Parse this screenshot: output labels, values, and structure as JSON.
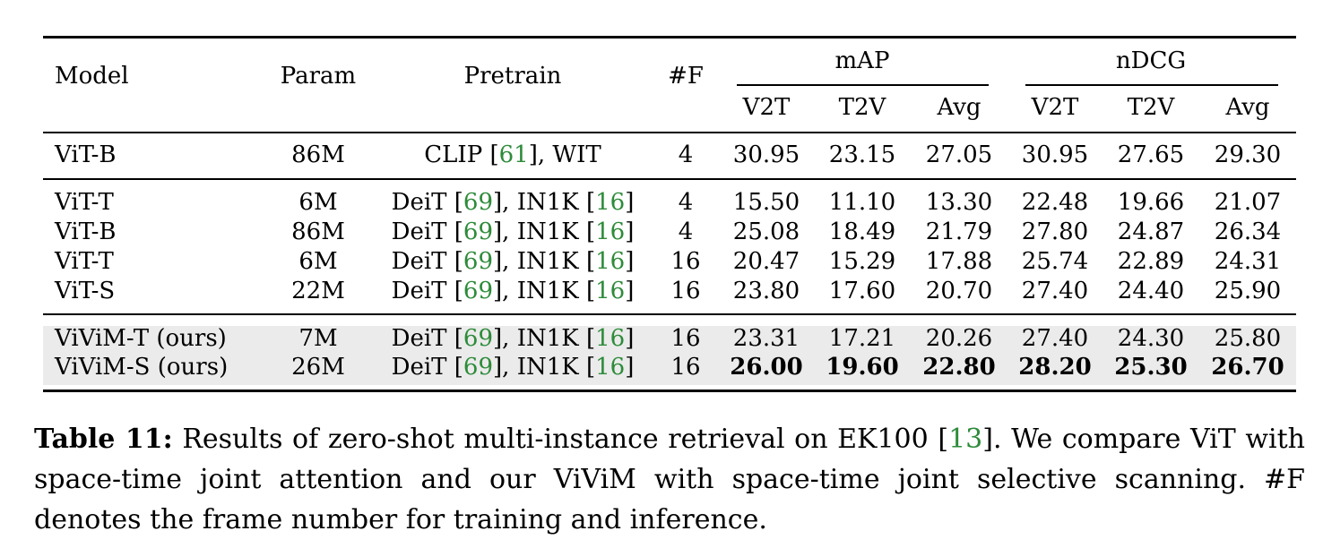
{
  "table": {
    "headers": {
      "model": "Model",
      "param": "Param",
      "pretrain": "Pretrain",
      "frames": "#F",
      "map_group": "mAP",
      "ndcg_group": "nDCG",
      "sub": [
        "V2T",
        "T2V",
        "Avg",
        "V2T",
        "T2V",
        "Avg"
      ]
    },
    "rows": [
      {
        "model": "ViT-B",
        "param": "86M",
        "pt_name": "CLIP",
        "pt_ref": "61",
        "pt_data": "WIT",
        "frames": "4",
        "vals": [
          "30.95",
          "23.15",
          "27.05",
          "30.95",
          "27.65",
          "29.30"
        ],
        "highlight": false,
        "bold_vals": false
      },
      {
        "model": "ViT-T",
        "param": "6M",
        "pt_name": "DeiT",
        "pt_ref": "69",
        "pt_data": "IN1K",
        "pt_data_ref": "16",
        "frames": "4",
        "vals": [
          "15.50",
          "11.10",
          "13.30",
          "22.48",
          "19.66",
          "21.07"
        ],
        "highlight": false,
        "bold_vals": false
      },
      {
        "model": "ViT-B",
        "param": "86M",
        "pt_name": "DeiT",
        "pt_ref": "69",
        "pt_data": "IN1K",
        "pt_data_ref": "16",
        "frames": "4",
        "vals": [
          "25.08",
          "18.49",
          "21.79",
          "27.80",
          "24.87",
          "26.34"
        ],
        "highlight": false,
        "bold_vals": false
      },
      {
        "model": "ViT-T",
        "param": "6M",
        "pt_name": "DeiT",
        "pt_ref": "69",
        "pt_data": "IN1K",
        "pt_data_ref": "16",
        "frames": "16",
        "vals": [
          "20.47",
          "15.29",
          "17.88",
          "25.74",
          "22.89",
          "24.31"
        ],
        "highlight": false,
        "bold_vals": false
      },
      {
        "model": "ViT-S",
        "param": "22M",
        "pt_name": "DeiT",
        "pt_ref": "69",
        "pt_data": "IN1K",
        "pt_data_ref": "16",
        "frames": "16",
        "vals": [
          "23.80",
          "17.60",
          "20.70",
          "27.40",
          "24.40",
          "25.90"
        ],
        "highlight": false,
        "bold_vals": false
      },
      {
        "model": "ViViM-T (ours)",
        "param": "7M",
        "pt_name": "DeiT",
        "pt_ref": "69",
        "pt_data": "IN1K",
        "pt_data_ref": "16",
        "frames": "16",
        "vals": [
          "23.31",
          "17.21",
          "20.26",
          "27.40",
          "24.30",
          "25.80"
        ],
        "highlight": true,
        "bold_vals": false
      },
      {
        "model": "ViViM-S (ours)",
        "param": "26M",
        "pt_name": "DeiT",
        "pt_ref": "69",
        "pt_data": "IN1K",
        "pt_data_ref": "16",
        "frames": "16",
        "vals": [
          "26.00",
          "19.60",
          "22.80",
          "28.20",
          "25.30",
          "26.70"
        ],
        "highlight": true,
        "bold_vals": true
      }
    ]
  },
  "caption": {
    "label": "Table 11:",
    "text_before_ref": " Results of zero-shot multi-instance retrieval on EK100 [",
    "ref": "13",
    "text_after_ref": "]. We compare ViT with space-time joint attention and our ViViM with space-time joint selective scanning. #F denotes the frame number for training and inference."
  },
  "colors": {
    "citation": "#2e8b3a",
    "highlight_bg": "#ebebeb",
    "rule": "#000000"
  }
}
